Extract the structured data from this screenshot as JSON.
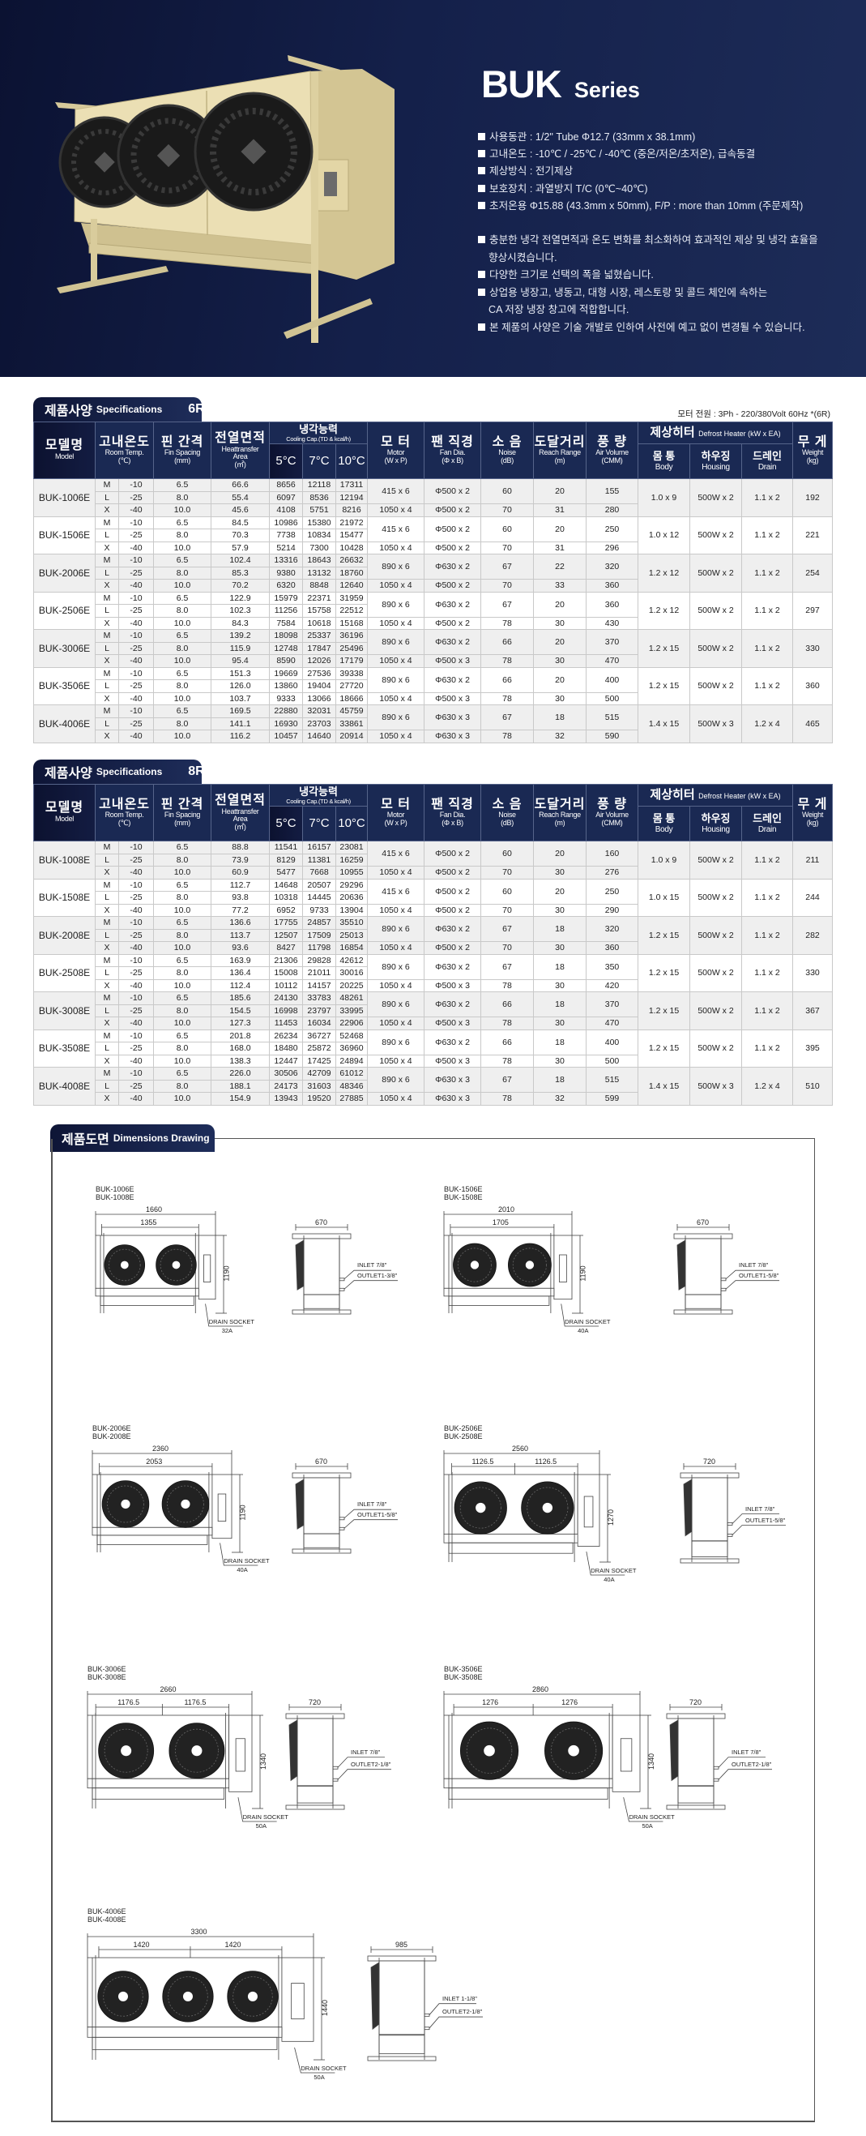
{
  "header": {
    "title": "BUK",
    "subtitle": "Series",
    "specs": [
      "사용동관 : 1/2\" Tube Φ12.7 (33mm x 38.1mm)",
      "고내온도 : -10℃ / -25℃ / -40℃ (중온/저온/초저온), 급속동결",
      "제상방식 : 전기제상",
      "보호장치 : 과열방지 T/C (0℃~40℃)",
      "초저온용 Φ15.88 (43.3mm x 50mm), F/P : more than 10mm (주문제작)"
    ],
    "features": [
      {
        "text": "충분한 냉각 전열면적과 온도 변화를 최소화하여 효과적인 제상 및 냉각 효율을",
        "cont": "향상시켰습니다."
      },
      {
        "text": "다양한 크기로 선택의 폭을 넓혔습니다.",
        "cont": ""
      },
      {
        "text": "상업용 냉장고, 냉동고, 대형 시장, 레스토랑 및 콜드 체인에 속하는",
        "cont": "CA 저장 냉장 창고에 적합합니다."
      },
      {
        "text": "본 제품의 사양은 기술 개발로 인하여 사전에 예고 없이 변경될 수 있습니다.",
        "cont": ""
      }
    ]
  },
  "colors": {
    "navy": "#1a2953",
    "product_body": "#e8dcb0",
    "row_shade": "#efefef"
  },
  "table_headers": {
    "model_ko": "모델명",
    "model_en": "Model",
    "room_ko": "고내온도",
    "room_en": "Room Temp.",
    "room_unit": "(℃)",
    "fin_ko": "핀 간격",
    "fin_en": "Fin Spacing",
    "fin_unit": "(mm)",
    "area_ko": "전열면적",
    "area_en": "Heattransfer",
    "area_en2": "Area",
    "area_unit": "(㎡)",
    "cap_ko": "냉각능력",
    "cap_en": "Cooling Cap.(TD & kcal/h)",
    "cap_cols": [
      "5°C",
      "7°C",
      "10°C"
    ],
    "motor_ko": "모 터",
    "motor_en": "Motor",
    "motor_unit": "(W x P)",
    "fan_ko": "팬 직경",
    "fan_en": "Fan Dia.",
    "fan_unit": "(Φ x B)",
    "noise_ko": "소 음",
    "noise_en": "Noise",
    "noise_unit": "(dB)",
    "reach_ko": "도달거리",
    "reach_en": "Reach Range",
    "reach_unit": "(m)",
    "air_ko": "풍 량",
    "air_en": "Air Volume",
    "air_unit": "(CMM)",
    "defrost_ko": "제상히터",
    "defrost_en": "Defrost Heater (kW x EA)",
    "body_ko": "몸 통",
    "body_en": "Body",
    "housing_ko": "하우징",
    "housing_en": "Housing",
    "drain_ko": "드레인",
    "drain_en": "Drain",
    "weight_ko": "무 게",
    "weight_en": "Weight",
    "weight_unit": "(kg)"
  },
  "spec_tables": [
    {
      "tab_ko": "제품사양",
      "tab_en": "Specifications",
      "code": "6R",
      "note": "모터 전원 : 3Ph - 220/380Volt 60Hz *(6R)",
      "models": [
        {
          "model": "BUK-1006E",
          "rows": [
            [
              "M",
              "-10",
              "6.5",
              "66.6",
              "8656",
              "12118",
              "17311"
            ],
            [
              "L",
              "-25",
              "8.0",
              "55.4",
              "6097",
              "8536",
              "12194"
            ],
            [
              "X",
              "-40",
              "10.0",
              "45.6",
              "4108",
              "5751",
              "8216"
            ]
          ],
          "ml": [
            "415 x 6",
            "Φ500 x 2",
            "60",
            "20",
            "155"
          ],
          "x": [
            "1050 x 4",
            "Φ500 x 2",
            "70",
            "31",
            "280"
          ],
          "defrost": [
            "1.0 x 9",
            "500W x 2",
            "1.1 x 2"
          ],
          "weight": "192"
        },
        {
          "model": "BUK-1506E",
          "rows": [
            [
              "M",
              "-10",
              "6.5",
              "84.5",
              "10986",
              "15380",
              "21972"
            ],
            [
              "L",
              "-25",
              "8.0",
              "70.3",
              "7738",
              "10834",
              "15477"
            ],
            [
              "X",
              "-40",
              "10.0",
              "57.9",
              "5214",
              "7300",
              "10428"
            ]
          ],
          "ml": [
            "415 x 6",
            "Φ500 x 2",
            "60",
            "20",
            "250"
          ],
          "x": [
            "1050 x 4",
            "Φ500 x 2",
            "70",
            "31",
            "296"
          ],
          "defrost": [
            "1.0 x 12",
            "500W x 2",
            "1.1 x 2"
          ],
          "weight": "221"
        },
        {
          "model": "BUK-2006E",
          "rows": [
            [
              "M",
              "-10",
              "6.5",
              "102.4",
              "13316",
              "18643",
              "26632"
            ],
            [
              "L",
              "-25",
              "8.0",
              "85.3",
              "9380",
              "13132",
              "18760"
            ],
            [
              "X",
              "-40",
              "10.0",
              "70.2",
              "6320",
              "8848",
              "12640"
            ]
          ],
          "ml": [
            "890 x 6",
            "Φ630 x 2",
            "67",
            "22",
            "320"
          ],
          "x": [
            "1050 x 4",
            "Φ500 x 2",
            "70",
            "33",
            "360"
          ],
          "defrost": [
            "1.2 x 12",
            "500W x 2",
            "1.1 x 2"
          ],
          "weight": "254"
        },
        {
          "model": "BUK-2506E",
          "rows": [
            [
              "M",
              "-10",
              "6.5",
              "122.9",
              "15979",
              "22371",
              "31959"
            ],
            [
              "L",
              "-25",
              "8.0",
              "102.3",
              "11256",
              "15758",
              "22512"
            ],
            [
              "X",
              "-40",
              "10.0",
              "84.3",
              "7584",
              "10618",
              "15168"
            ]
          ],
          "ml": [
            "890 x 6",
            "Φ630 x 2",
            "67",
            "20",
            "360"
          ],
          "x": [
            "1050 x 4",
            "Φ500 x 2",
            "78",
            "30",
            "430"
          ],
          "defrost": [
            "1.2 x 12",
            "500W x 2",
            "1.1 x 2"
          ],
          "weight": "297"
        },
        {
          "model": "BUK-3006E",
          "rows": [
            [
              "M",
              "-10",
              "6.5",
              "139.2",
              "18098",
              "25337",
              "36196"
            ],
            [
              "L",
              "-25",
              "8.0",
              "115.9",
              "12748",
              "17847",
              "25496"
            ],
            [
              "X",
              "-40",
              "10.0",
              "95.4",
              "8590",
              "12026",
              "17179"
            ]
          ],
          "ml": [
            "890 x 6",
            "Φ630 x 2",
            "66",
            "20",
            "370"
          ],
          "x": [
            "1050 x 4",
            "Φ500 x 3",
            "78",
            "30",
            "470"
          ],
          "defrost": [
            "1.2 x 15",
            "500W x 2",
            "1.1 x 2"
          ],
          "weight": "330"
        },
        {
          "model": "BUK-3506E",
          "rows": [
            [
              "M",
              "-10",
              "6.5",
              "151.3",
              "19669",
              "27536",
              "39338"
            ],
            [
              "L",
              "-25",
              "8.0",
              "126.0",
              "13860",
              "19404",
              "27720"
            ],
            [
              "X",
              "-40",
              "10.0",
              "103.7",
              "9333",
              "13066",
              "18666"
            ]
          ],
          "ml": [
            "890 x 6",
            "Φ630 x 2",
            "66",
            "20",
            "400"
          ],
          "x": [
            "1050 x 4",
            "Φ500 x 3",
            "78",
            "30",
            "500"
          ],
          "defrost": [
            "1.2 x 15",
            "500W x 2",
            "1.1 x 2"
          ],
          "weight": "360"
        },
        {
          "model": "BUK-4006E",
          "rows": [
            [
              "M",
              "-10",
              "6.5",
              "169.5",
              "22880",
              "32031",
              "45759"
            ],
            [
              "L",
              "-25",
              "8.0",
              "141.1",
              "16930",
              "23703",
              "33861"
            ],
            [
              "X",
              "-40",
              "10.0",
              "116.2",
              "10457",
              "14640",
              "20914"
            ]
          ],
          "ml": [
            "890 x 6",
            "Φ630 x 3",
            "67",
            "18",
            "515"
          ],
          "x": [
            "1050 x 4",
            "Φ630 x 3",
            "78",
            "32",
            "590"
          ],
          "defrost": [
            "1.4 x 15",
            "500W x 3",
            "1.2 x 4"
          ],
          "weight": "465"
        }
      ]
    },
    {
      "tab_ko": "제품사양",
      "tab_en": "Specifications",
      "code": "8R",
      "models": [
        {
          "model": "BUK-1008E",
          "rows": [
            [
              "M",
              "-10",
              "6.5",
              "88.8",
              "11541",
              "16157",
              "23081"
            ],
            [
              "L",
              "-25",
              "8.0",
              "73.9",
              "8129",
              "11381",
              "16259"
            ],
            [
              "X",
              "-40",
              "10.0",
              "60.9",
              "5477",
              "7668",
              "10955"
            ]
          ],
          "ml": [
            "415 x 6",
            "Φ500 x 2",
            "60",
            "20",
            "160"
          ],
          "x": [
            "1050 x 4",
            "Φ500 x 2",
            "70",
            "30",
            "276"
          ],
          "defrost": [
            "1.0 x 9",
            "500W x 2",
            "1.1 x 2"
          ],
          "weight": "211"
        },
        {
          "model": "BUK-1508E",
          "rows": [
            [
              "M",
              "-10",
              "6.5",
              "112.7",
              "14648",
              "20507",
              "29296"
            ],
            [
              "L",
              "-25",
              "8.0",
              "93.8",
              "10318",
              "14445",
              "20636"
            ],
            [
              "X",
              "-40",
              "10.0",
              "77.2",
              "6952",
              "9733",
              "13904"
            ]
          ],
          "ml": [
            "415 x 6",
            "Φ500 x 2",
            "60",
            "20",
            "250"
          ],
          "x": [
            "1050 x 4",
            "Φ500 x 2",
            "70",
            "30",
            "290"
          ],
          "defrost": [
            "1.0 x 15",
            "500W x 2",
            "1.1 x 2"
          ],
          "weight": "244"
        },
        {
          "model": "BUK-2008E",
          "rows": [
            [
              "M",
              "-10",
              "6.5",
              "136.6",
              "17755",
              "24857",
              "35510"
            ],
            [
              "L",
              "-25",
              "8.0",
              "113.7",
              "12507",
              "17509",
              "25013"
            ],
            [
              "X",
              "-40",
              "10.0",
              "93.6",
              "8427",
              "11798",
              "16854"
            ]
          ],
          "ml": [
            "890 x 6",
            "Φ630 x 2",
            "67",
            "18",
            "320"
          ],
          "x": [
            "1050 x 4",
            "Φ500 x 2",
            "70",
            "30",
            "360"
          ],
          "defrost": [
            "1.2 x 15",
            "500W x 2",
            "1.1 x 2"
          ],
          "weight": "282"
        },
        {
          "model": "BUK-2508E",
          "rows": [
            [
              "M",
              "-10",
              "6.5",
              "163.9",
              "21306",
              "29828",
              "42612"
            ],
            [
              "L",
              "-25",
              "8.0",
              "136.4",
              "15008",
              "21011",
              "30016"
            ],
            [
              "X",
              "-40",
              "10.0",
              "112.4",
              "10112",
              "14157",
              "20225"
            ]
          ],
          "ml": [
            "890 x 6",
            "Φ630 x 2",
            "67",
            "18",
            "350"
          ],
          "x": [
            "1050 x 4",
            "Φ500 x 3",
            "78",
            "30",
            "420"
          ],
          "defrost": [
            "1.2 x 15",
            "500W x 2",
            "1.1 x 2"
          ],
          "weight": "330"
        },
        {
          "model": "BUK-3008E",
          "rows": [
            [
              "M",
              "-10",
              "6.5",
              "185.6",
              "24130",
              "33783",
              "48261"
            ],
            [
              "L",
              "-25",
              "8.0",
              "154.5",
              "16998",
              "23797",
              "33995"
            ],
            [
              "X",
              "-40",
              "10.0",
              "127.3",
              "11453",
              "16034",
              "22906"
            ]
          ],
          "ml": [
            "890 x 6",
            "Φ630 x 2",
            "66",
            "18",
            "370"
          ],
          "x": [
            "1050 x 4",
            "Φ500 x 3",
            "78",
            "30",
            "470"
          ],
          "defrost": [
            "1.2 x 15",
            "500W x 2",
            "1.1 x 2"
          ],
          "weight": "367"
        },
        {
          "model": "BUK-3508E",
          "rows": [
            [
              "M",
              "-10",
              "6.5",
              "201.8",
              "26234",
              "36727",
              "52468"
            ],
            [
              "L",
              "-25",
              "8.0",
              "168.0",
              "18480",
              "25872",
              "36960"
            ],
            [
              "X",
              "-40",
              "10.0",
              "138.3",
              "12447",
              "17425",
              "24894"
            ]
          ],
          "ml": [
            "890 x 6",
            "Φ630 x 2",
            "66",
            "18",
            "400"
          ],
          "x": [
            "1050 x 4",
            "Φ500 x 3",
            "78",
            "30",
            "500"
          ],
          "defrost": [
            "1.2 x 15",
            "500W x 2",
            "1.1 x 2"
          ],
          "weight": "395"
        },
        {
          "model": "BUK-4008E",
          "rows": [
            [
              "M",
              "-10",
              "6.5",
              "226.0",
              "30506",
              "42709",
              "61012"
            ],
            [
              "L",
              "-25",
              "8.0",
              "188.1",
              "24173",
              "31603",
              "48346"
            ],
            [
              "X",
              "-40",
              "10.0",
              "154.9",
              "13943",
              "19520",
              "27885"
            ]
          ],
          "ml": [
            "890 x 6",
            "Φ630 x 3",
            "67",
            "18",
            "515"
          ],
          "x": [
            "1050 x 4",
            "Φ630 x 3",
            "78",
            "32",
            "599"
          ],
          "defrost": [
            "1.4 x 15",
            "500W x 3",
            "1.2 x 4"
          ],
          "weight": "510"
        }
      ]
    }
  ],
  "drawings_section": {
    "tab_ko": "제품도면",
    "tab_en": "Dimensions Drawing",
    "drawings": [
      {
        "models": [
          "BUK-1006E",
          "BUK-1008E"
        ],
        "fans": 2,
        "width": "1660",
        "inner": [
          "1355"
        ],
        "height": "1190",
        "depth": "670",
        "inlet": "INLET 7/8\"",
        "outlet": "OUTLET1-3/8\"",
        "drain": "DRAIN SOCKET",
        "drain_size": "32A"
      },
      {
        "models": [
          "BUK-1506E",
          "BUK-1508E"
        ],
        "fans": 2,
        "width": "2010",
        "inner": [
          "1705"
        ],
        "height": "1190",
        "depth": "670",
        "inlet": "INLET 7/8\"",
        "outlet": "OUTLET1-5/8\"",
        "drain": "DRAIN SOCKET",
        "drain_size": "40A"
      },
      {
        "models": [
          "BUK-2006E",
          "BUK-2008E"
        ],
        "fans": 2,
        "width": "2360",
        "inner": [
          "2053"
        ],
        "height": "1190",
        "depth": "670",
        "inlet": "INLET 7/8\"",
        "outlet": "OUTLET1-5/8\"",
        "drain": "DRAIN SOCKET",
        "drain_size": "40A"
      },
      {
        "models": [
          "BUK-2506E",
          "BUK-2508E"
        ],
        "fans": 2,
        "width": "2560",
        "inner": [
          "1126.5",
          "1126.5"
        ],
        "height": "1270",
        "depth": "720",
        "inlet": "INLET 7/8\"",
        "outlet": "OUTLET1-5/8\"",
        "drain": "DRAIN SOCKET",
        "drain_size": "40A"
      },
      {
        "models": [
          "BUK-3006E",
          "BUK-3008E"
        ],
        "fans": 2,
        "width": "2660",
        "inner": [
          "1176.5",
          "1176.5"
        ],
        "height": "1340",
        "depth": "720",
        "inlet": "INLET 7/8\"",
        "outlet": "OUTLET2-1/8\"",
        "drain": "DRAIN SOCKET",
        "drain_size": "50A"
      },
      {
        "models": [
          "BUK-3506E",
          "BUK-3508E"
        ],
        "fans": 2,
        "width": "2860",
        "inner": [
          "1276",
          "1276"
        ],
        "height": "1340",
        "depth": "720",
        "inlet": "INLET 7/8\"",
        "outlet": "OUTLET2-1/8\"",
        "drain": "DRAIN SOCKET",
        "drain_size": "50A"
      },
      {
        "models": [
          "BUK-4006E",
          "BUK-4008E"
        ],
        "fans": 3,
        "width": "3300",
        "inner": [
          "1420",
          "1420"
        ],
        "height": "1440",
        "depth": "985",
        "inlet": "INLET 1-1/8\"",
        "outlet": "OUTLET2-1/8\"",
        "drain": "DRAIN SOCKET",
        "drain_size": "50A"
      }
    ]
  }
}
